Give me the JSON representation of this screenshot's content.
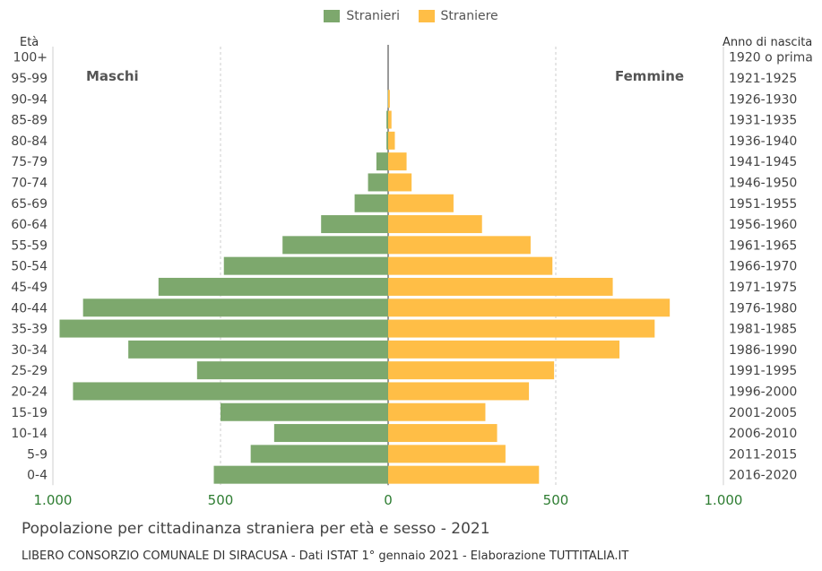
{
  "legend": [
    {
      "label": "Stranieri",
      "color": "#7da86d"
    },
    {
      "label": "Straniere",
      "color": "#ffbe46"
    }
  ],
  "chart_data": {
    "type": "bar",
    "orientation": "horizontal-pyramid",
    "left_axis_title": "Età",
    "right_axis_title": "Anno di nascita",
    "left_group_label": "Maschi",
    "right_group_label": "Femmine",
    "categories": [
      "100+",
      "95-99",
      "90-94",
      "85-89",
      "80-84",
      "75-79",
      "70-74",
      "65-69",
      "60-64",
      "55-59",
      "50-54",
      "45-49",
      "40-44",
      "35-39",
      "30-34",
      "25-29",
      "20-24",
      "15-19",
      "10-14",
      "5-9",
      "0-4"
    ],
    "birth_years": [
      "1920 o prima",
      "1921-1925",
      "1926-1930",
      "1931-1935",
      "1936-1940",
      "1941-1945",
      "1946-1950",
      "1951-1955",
      "1956-1960",
      "1961-1965",
      "1966-1970",
      "1971-1975",
      "1976-1980",
      "1981-1985",
      "1986-1990",
      "1991-1995",
      "1996-2000",
      "2001-2005",
      "2006-2010",
      "2011-2015",
      "2016-2020"
    ],
    "series": [
      {
        "name": "Stranieri",
        "color": "#7da86d",
        "values": [
          0,
          0,
          1,
          5,
          5,
          35,
          60,
          100,
          200,
          315,
          490,
          685,
          910,
          980,
          775,
          570,
          940,
          500,
          340,
          410,
          520
        ]
      },
      {
        "name": "Straniere",
        "color": "#ffbe46",
        "values": [
          0,
          0,
          5,
          10,
          20,
          55,
          70,
          195,
          280,
          425,
          490,
          670,
          840,
          795,
          690,
          495,
          420,
          290,
          325,
          350,
          450
        ]
      }
    ],
    "x_tick_labels": [
      "1.000",
      "500",
      "0",
      "500",
      "1.000"
    ],
    "xlim": [
      -1000,
      1000
    ],
    "grid": true
  },
  "footer": {
    "title": "Popolazione per cittadinanza straniera per età e sesso - 2021",
    "source": "LIBERO CONSORZIO COMUNALE DI SIRACUSA - Dati ISTAT 1° gennaio 2021 - Elaborazione TUTTITALIA.IT"
  }
}
